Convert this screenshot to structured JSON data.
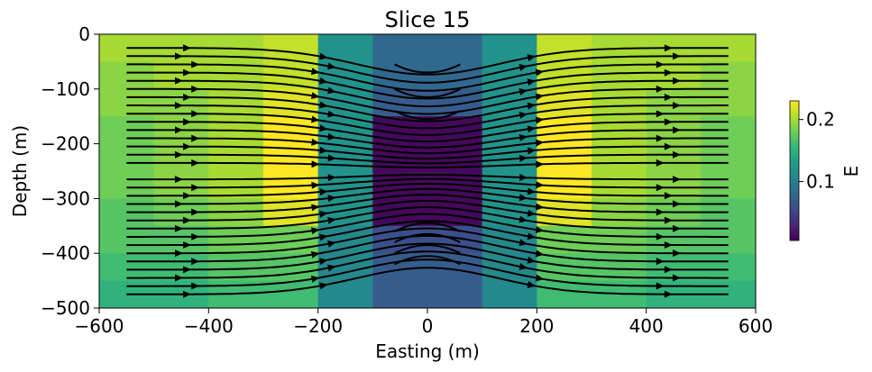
{
  "chart_data": {
    "type": "heatmap",
    "title": "Slice 15",
    "xlabel": "Easting (m)",
    "ylabel": "Depth (m)",
    "xlim": [
      -600,
      600
    ],
    "ylim": [
      -500,
      0
    ],
    "xticks": [
      -600,
      -400,
      -200,
      0,
      200,
      400,
      600
    ],
    "xtick_labels": [
      "−600",
      "−400",
      "−200",
      "0",
      "200",
      "400",
      "600"
    ],
    "yticks": [
      0,
      -100,
      -200,
      -300,
      -400,
      -500
    ],
    "ytick_labels": [
      "0",
      "−100",
      "−200",
      "−300",
      "−400",
      "−500"
    ],
    "x_edges": [
      -600,
      -500,
      -400,
      -300,
      -200,
      -100,
      0,
      100,
      200,
      300,
      400,
      500,
      600
    ],
    "y_edges": [
      0,
      -50,
      -100,
      -150,
      -200,
      -250,
      -300,
      -350,
      -400,
      -450,
      -500
    ],
    "values": [
      [
        0.2,
        0.2,
        0.2,
        0.21,
        0.12,
        0.08,
        0.08,
        0.12,
        0.21,
        0.2,
        0.2,
        0.2
      ],
      [
        0.19,
        0.2,
        0.2,
        0.21,
        0.12,
        0.08,
        0.08,
        0.12,
        0.21,
        0.2,
        0.2,
        0.19
      ],
      [
        0.19,
        0.19,
        0.2,
        0.22,
        0.12,
        0.07,
        0.07,
        0.12,
        0.22,
        0.2,
        0.19,
        0.19
      ],
      [
        0.18,
        0.19,
        0.2,
        0.23,
        0.12,
        0.01,
        0.01,
        0.12,
        0.23,
        0.2,
        0.19,
        0.18
      ],
      [
        0.18,
        0.19,
        0.2,
        0.23,
        0.12,
        0.01,
        0.01,
        0.12,
        0.23,
        0.2,
        0.19,
        0.18
      ],
      [
        0.18,
        0.19,
        0.2,
        0.23,
        0.12,
        0.01,
        0.01,
        0.12,
        0.23,
        0.2,
        0.19,
        0.18
      ],
      [
        0.17,
        0.18,
        0.19,
        0.22,
        0.12,
        0.01,
        0.01,
        0.12,
        0.22,
        0.19,
        0.18,
        0.17
      ],
      [
        0.17,
        0.17,
        0.18,
        0.18,
        0.11,
        0.06,
        0.06,
        0.11,
        0.18,
        0.18,
        0.17,
        0.17
      ],
      [
        0.16,
        0.16,
        0.17,
        0.17,
        0.11,
        0.07,
        0.07,
        0.11,
        0.17,
        0.17,
        0.16,
        0.16
      ],
      [
        0.15,
        0.15,
        0.16,
        0.16,
        0.11,
        0.07,
        0.07,
        0.11,
        0.16,
        0.16,
        0.15,
        0.15
      ]
    ],
    "colorbar": {
      "label": "E",
      "range": [
        0.005,
        0.23
      ],
      "ticks": [
        0.1,
        0.2
      ],
      "tick_labels": [
        "0.1",
        "0.2"
      ],
      "colormap": "viridis"
    },
    "overlay": "streamlines",
    "stream_color": "#000000",
    "grid": false
  }
}
